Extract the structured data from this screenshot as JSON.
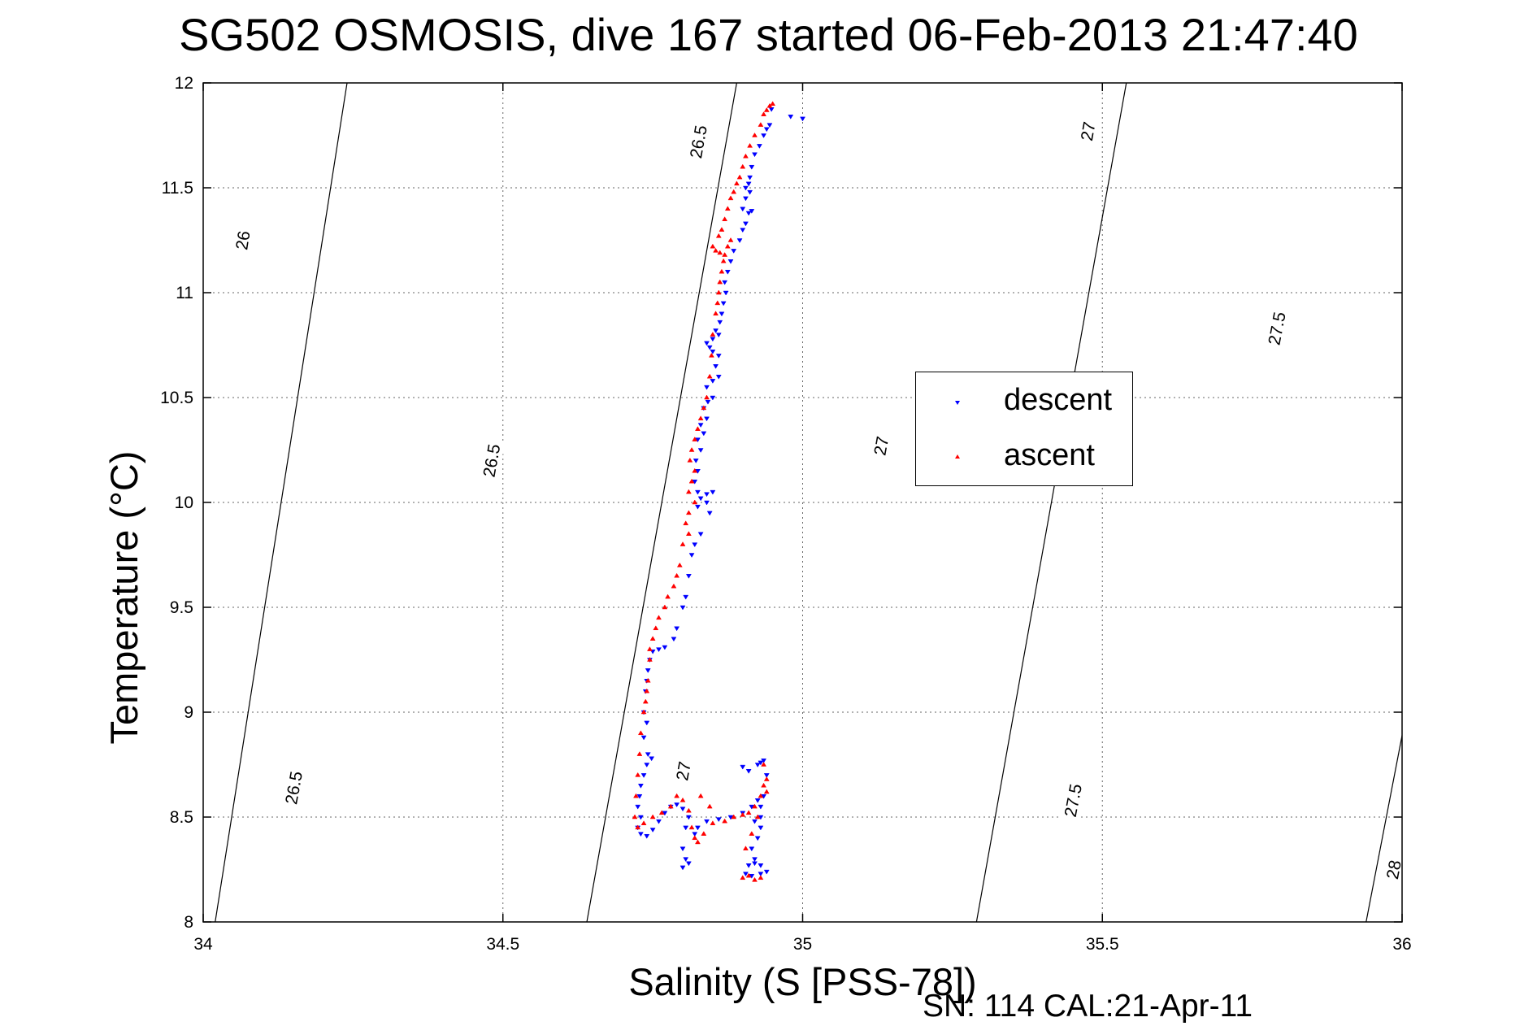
{
  "chart_data": {
    "type": "scatter",
    "title": "SG502 OSMOSIS, dive 167 started 06-Feb-2013 21:47:40",
    "xlabel": "Salinity (S [PSS-78])",
    "ylabel": "Temperature (°C)",
    "xlim": [
      34,
      36
    ],
    "ylim": [
      8,
      12
    ],
    "xticks": [
      34,
      34.5,
      35,
      35.5,
      36
    ],
    "xtick_labels": [
      "34",
      "34.5",
      "35",
      "35.5",
      "36"
    ],
    "yticks": [
      8,
      8.5,
      9,
      9.5,
      10,
      10.5,
      11,
      11.5,
      12
    ],
    "ytick_labels": [
      "8",
      "8.5",
      "9",
      "9.5",
      "10",
      "10.5",
      "11",
      "11.5",
      "12"
    ],
    "grid": true,
    "grid_style": "dotted",
    "legend_position": "center-right",
    "footnote": "SN: 114  CAL:21-Apr-11",
    "density_contours": [
      {
        "value": 26,
        "label": "26",
        "points": [
          [
            34.02,
            8
          ],
          [
            34.24,
            12
          ]
        ],
        "labels_at": [
          [
            34.065,
            11.25
          ]
        ]
      },
      {
        "value": 26.5,
        "label": "26.5",
        "points": [
          [
            34.64,
            8
          ],
          [
            34.89,
            12
          ]
        ],
        "labels_at": [
          [
            34.15,
            8.64
          ],
          [
            34.48,
            10.2
          ],
          [
            34.825,
            11.72
          ]
        ]
      },
      {
        "value": 27,
        "label": "27",
        "points": [
          [
            35.29,
            8
          ],
          [
            35.54,
            12
          ]
        ],
        "labels_at": [
          [
            34.8,
            8.72
          ],
          [
            35.13,
            10.27
          ],
          [
            35.475,
            11.77
          ]
        ]
      },
      {
        "value": 27.5,
        "label": "27.5",
        "points": [
          [
            35.94,
            8
          ],
          [
            36.21,
            12
          ]
        ],
        "labels_at": [
          [
            35.45,
            8.58
          ],
          [
            35.79,
            10.83
          ]
        ]
      },
      {
        "value": 28,
        "label": "28",
        "points": [
          [
            36.59,
            8
          ],
          [
            36.86,
            12
          ]
        ],
        "labels_at": [
          [
            35.985,
            8.25
          ]
        ]
      }
    ],
    "series": [
      {
        "name": "descent",
        "color": "#0000ff",
        "marker": "triangle-down",
        "points": [
          [
            34.948,
            11.875
          ],
          [
            34.98,
            11.84
          ],
          [
            35.0,
            11.83
          ],
          [
            34.945,
            11.8
          ],
          [
            34.94,
            11.78
          ],
          [
            34.935,
            11.75
          ],
          [
            34.928,
            11.7
          ],
          [
            34.92,
            11.66
          ],
          [
            34.915,
            11.6
          ],
          [
            34.912,
            11.55
          ],
          [
            34.91,
            11.52
          ],
          [
            34.905,
            11.5
          ],
          [
            34.912,
            11.48
          ],
          [
            34.905,
            11.45
          ],
          [
            34.9,
            11.4
          ],
          [
            34.915,
            11.39
          ],
          [
            34.91,
            11.38
          ],
          [
            34.905,
            11.33
          ],
          [
            34.9,
            11.3
          ],
          [
            34.895,
            11.25
          ],
          [
            34.885,
            11.2
          ],
          [
            34.88,
            11.15
          ],
          [
            34.875,
            11.1
          ],
          [
            34.87,
            11.05
          ],
          [
            34.872,
            11.0
          ],
          [
            34.868,
            10.95
          ],
          [
            34.865,
            10.9
          ],
          [
            34.862,
            10.86
          ],
          [
            34.855,
            10.82
          ],
          [
            34.86,
            10.8
          ],
          [
            34.85,
            10.78
          ],
          [
            34.84,
            10.76
          ],
          [
            34.845,
            10.74
          ],
          [
            34.85,
            10.72
          ],
          [
            34.86,
            10.7
          ],
          [
            34.855,
            10.65
          ],
          [
            34.86,
            10.6
          ],
          [
            34.85,
            10.58
          ],
          [
            34.84,
            10.55
          ],
          [
            34.85,
            10.5
          ],
          [
            34.842,
            10.48
          ],
          [
            34.835,
            10.45
          ],
          [
            34.84,
            10.4
          ],
          [
            34.83,
            10.37
          ],
          [
            34.835,
            10.33
          ],
          [
            34.825,
            10.3
          ],
          [
            34.83,
            10.25
          ],
          [
            34.822,
            10.2
          ],
          [
            34.825,
            10.15
          ],
          [
            34.82,
            10.1
          ],
          [
            34.825,
            10.05
          ],
          [
            34.83,
            10.02
          ],
          [
            34.84,
            10.04
          ],
          [
            34.85,
            10.05
          ],
          [
            34.84,
            10.0
          ],
          [
            34.825,
            9.98
          ],
          [
            34.845,
            9.95
          ],
          [
            34.83,
            9.85
          ],
          [
            34.82,
            9.8
          ],
          [
            34.815,
            9.75
          ],
          [
            34.81,
            9.65
          ],
          [
            34.805,
            9.55
          ],
          [
            34.8,
            9.5
          ],
          [
            34.79,
            9.4
          ],
          [
            34.785,
            9.35
          ],
          [
            34.77,
            9.31
          ],
          [
            34.76,
            9.3
          ],
          [
            34.75,
            9.29
          ],
          [
            34.745,
            9.25
          ],
          [
            34.742,
            9.2
          ],
          [
            34.74,
            9.15
          ],
          [
            34.738,
            9.1
          ],
          [
            34.735,
            9.0
          ],
          [
            34.74,
            8.95
          ],
          [
            34.735,
            8.88
          ],
          [
            34.742,
            8.8
          ],
          [
            34.748,
            8.78
          ],
          [
            34.74,
            8.75
          ],
          [
            34.735,
            8.7
          ],
          [
            34.73,
            8.65
          ],
          [
            34.728,
            8.6
          ],
          [
            34.725,
            8.55
          ],
          [
            34.73,
            8.5
          ],
          [
            34.725,
            8.45
          ],
          [
            34.73,
            8.42
          ],
          [
            34.74,
            8.41
          ],
          [
            34.75,
            8.44
          ],
          [
            34.76,
            8.48
          ],
          [
            34.77,
            8.52
          ],
          [
            34.78,
            8.55
          ],
          [
            34.79,
            8.56
          ],
          [
            34.8,
            8.54
          ],
          [
            34.81,
            8.5
          ],
          [
            34.805,
            8.45
          ],
          [
            34.8,
            8.35
          ],
          [
            34.805,
            8.3
          ],
          [
            34.8,
            8.26
          ],
          [
            34.81,
            8.28
          ],
          [
            34.82,
            8.42
          ],
          [
            34.825,
            8.45
          ],
          [
            34.84,
            8.48
          ],
          [
            34.86,
            8.49
          ],
          [
            34.88,
            8.5
          ],
          [
            34.9,
            8.52
          ],
          [
            34.915,
            8.55
          ],
          [
            34.925,
            8.58
          ],
          [
            34.93,
            8.5
          ],
          [
            34.93,
            8.45
          ],
          [
            34.92,
            8.48
          ],
          [
            34.925,
            8.4
          ],
          [
            34.915,
            8.35
          ],
          [
            34.93,
            8.55
          ],
          [
            34.935,
            8.6
          ],
          [
            34.925,
            8.75
          ],
          [
            34.93,
            8.76
          ],
          [
            34.935,
            8.77
          ],
          [
            34.94,
            8.7
          ],
          [
            34.92,
            8.28
          ],
          [
            34.91,
            8.27
          ],
          [
            34.92,
            8.3
          ],
          [
            34.93,
            8.27
          ],
          [
            34.905,
            8.23
          ],
          [
            34.915,
            8.22
          ],
          [
            34.93,
            8.23
          ],
          [
            34.94,
            8.24
          ],
          [
            34.91,
            8.72
          ],
          [
            34.9,
            8.74
          ]
        ]
      },
      {
        "name": "ascent",
        "color": "#ff0000",
        "marker": "triangle-up",
        "points": [
          [
            34.95,
            11.9
          ],
          [
            34.945,
            11.89
          ],
          [
            34.94,
            11.87
          ],
          [
            34.935,
            11.85
          ],
          [
            34.93,
            11.8
          ],
          [
            34.92,
            11.75
          ],
          [
            34.912,
            11.7
          ],
          [
            34.905,
            11.65
          ],
          [
            34.9,
            11.6
          ],
          [
            34.895,
            11.55
          ],
          [
            34.89,
            11.52
          ],
          [
            34.885,
            11.48
          ],
          [
            34.88,
            11.45
          ],
          [
            34.875,
            11.4
          ],
          [
            34.87,
            11.35
          ],
          [
            34.865,
            11.3
          ],
          [
            34.86,
            11.27
          ],
          [
            34.85,
            11.22
          ],
          [
            34.855,
            11.2
          ],
          [
            34.862,
            11.19
          ],
          [
            34.87,
            11.18
          ],
          [
            34.875,
            11.22
          ],
          [
            34.88,
            11.25
          ],
          [
            34.868,
            11.15
          ],
          [
            34.865,
            11.1
          ],
          [
            34.862,
            11.05
          ],
          [
            34.86,
            11.0
          ],
          [
            34.858,
            10.95
          ],
          [
            34.855,
            10.9
          ],
          [
            34.85,
            10.8
          ],
          [
            34.848,
            10.7
          ],
          [
            34.845,
            10.6
          ],
          [
            34.84,
            10.5
          ],
          [
            34.835,
            10.45
          ],
          [
            34.83,
            10.4
          ],
          [
            34.825,
            10.35
          ],
          [
            34.82,
            10.3
          ],
          [
            34.815,
            10.25
          ],
          [
            34.812,
            10.2
          ],
          [
            34.82,
            10.15
          ],
          [
            34.815,
            10.1
          ],
          [
            34.81,
            10.05
          ],
          [
            34.82,
            10.0
          ],
          [
            34.81,
            9.95
          ],
          [
            34.805,
            9.9
          ],
          [
            34.81,
            9.85
          ],
          [
            34.8,
            9.8
          ],
          [
            34.795,
            9.7
          ],
          [
            34.79,
            9.65
          ],
          [
            34.785,
            9.6
          ],
          [
            34.775,
            9.55
          ],
          [
            34.77,
            9.5
          ],
          [
            34.76,
            9.45
          ],
          [
            34.755,
            9.4
          ],
          [
            34.75,
            9.35
          ],
          [
            34.745,
            9.3
          ],
          [
            34.745,
            9.25
          ],
          [
            34.742,
            9.15
          ],
          [
            34.74,
            9.1
          ],
          [
            34.738,
            9.05
          ],
          [
            34.735,
            9.0
          ],
          [
            34.73,
            8.9
          ],
          [
            34.728,
            8.8
          ],
          [
            34.725,
            8.7
          ],
          [
            34.722,
            8.6
          ],
          [
            34.72,
            8.5
          ],
          [
            34.725,
            8.45
          ],
          [
            34.735,
            8.47
          ],
          [
            34.75,
            8.5
          ],
          [
            34.765,
            8.52
          ],
          [
            34.78,
            8.55
          ],
          [
            34.79,
            8.6
          ],
          [
            34.8,
            8.58
          ],
          [
            34.81,
            8.53
          ],
          [
            34.815,
            8.45
          ],
          [
            34.82,
            8.4
          ],
          [
            34.825,
            8.38
          ],
          [
            34.835,
            8.42
          ],
          [
            34.85,
            8.47
          ],
          [
            34.87,
            8.48
          ],
          [
            34.885,
            8.5
          ],
          [
            34.9,
            8.51
          ],
          [
            34.91,
            8.52
          ],
          [
            34.92,
            8.55
          ],
          [
            34.93,
            8.6
          ],
          [
            34.935,
            8.65
          ],
          [
            34.94,
            8.68
          ],
          [
            34.935,
            8.75
          ],
          [
            34.925,
            8.5
          ],
          [
            34.915,
            8.42
          ],
          [
            34.905,
            8.35
          ],
          [
            34.91,
            8.22
          ],
          [
            34.9,
            8.21
          ],
          [
            34.92,
            8.2
          ],
          [
            34.93,
            8.21
          ],
          [
            34.94,
            8.62
          ],
          [
            34.83,
            8.6
          ],
          [
            34.845,
            8.55
          ]
        ]
      }
    ]
  }
}
